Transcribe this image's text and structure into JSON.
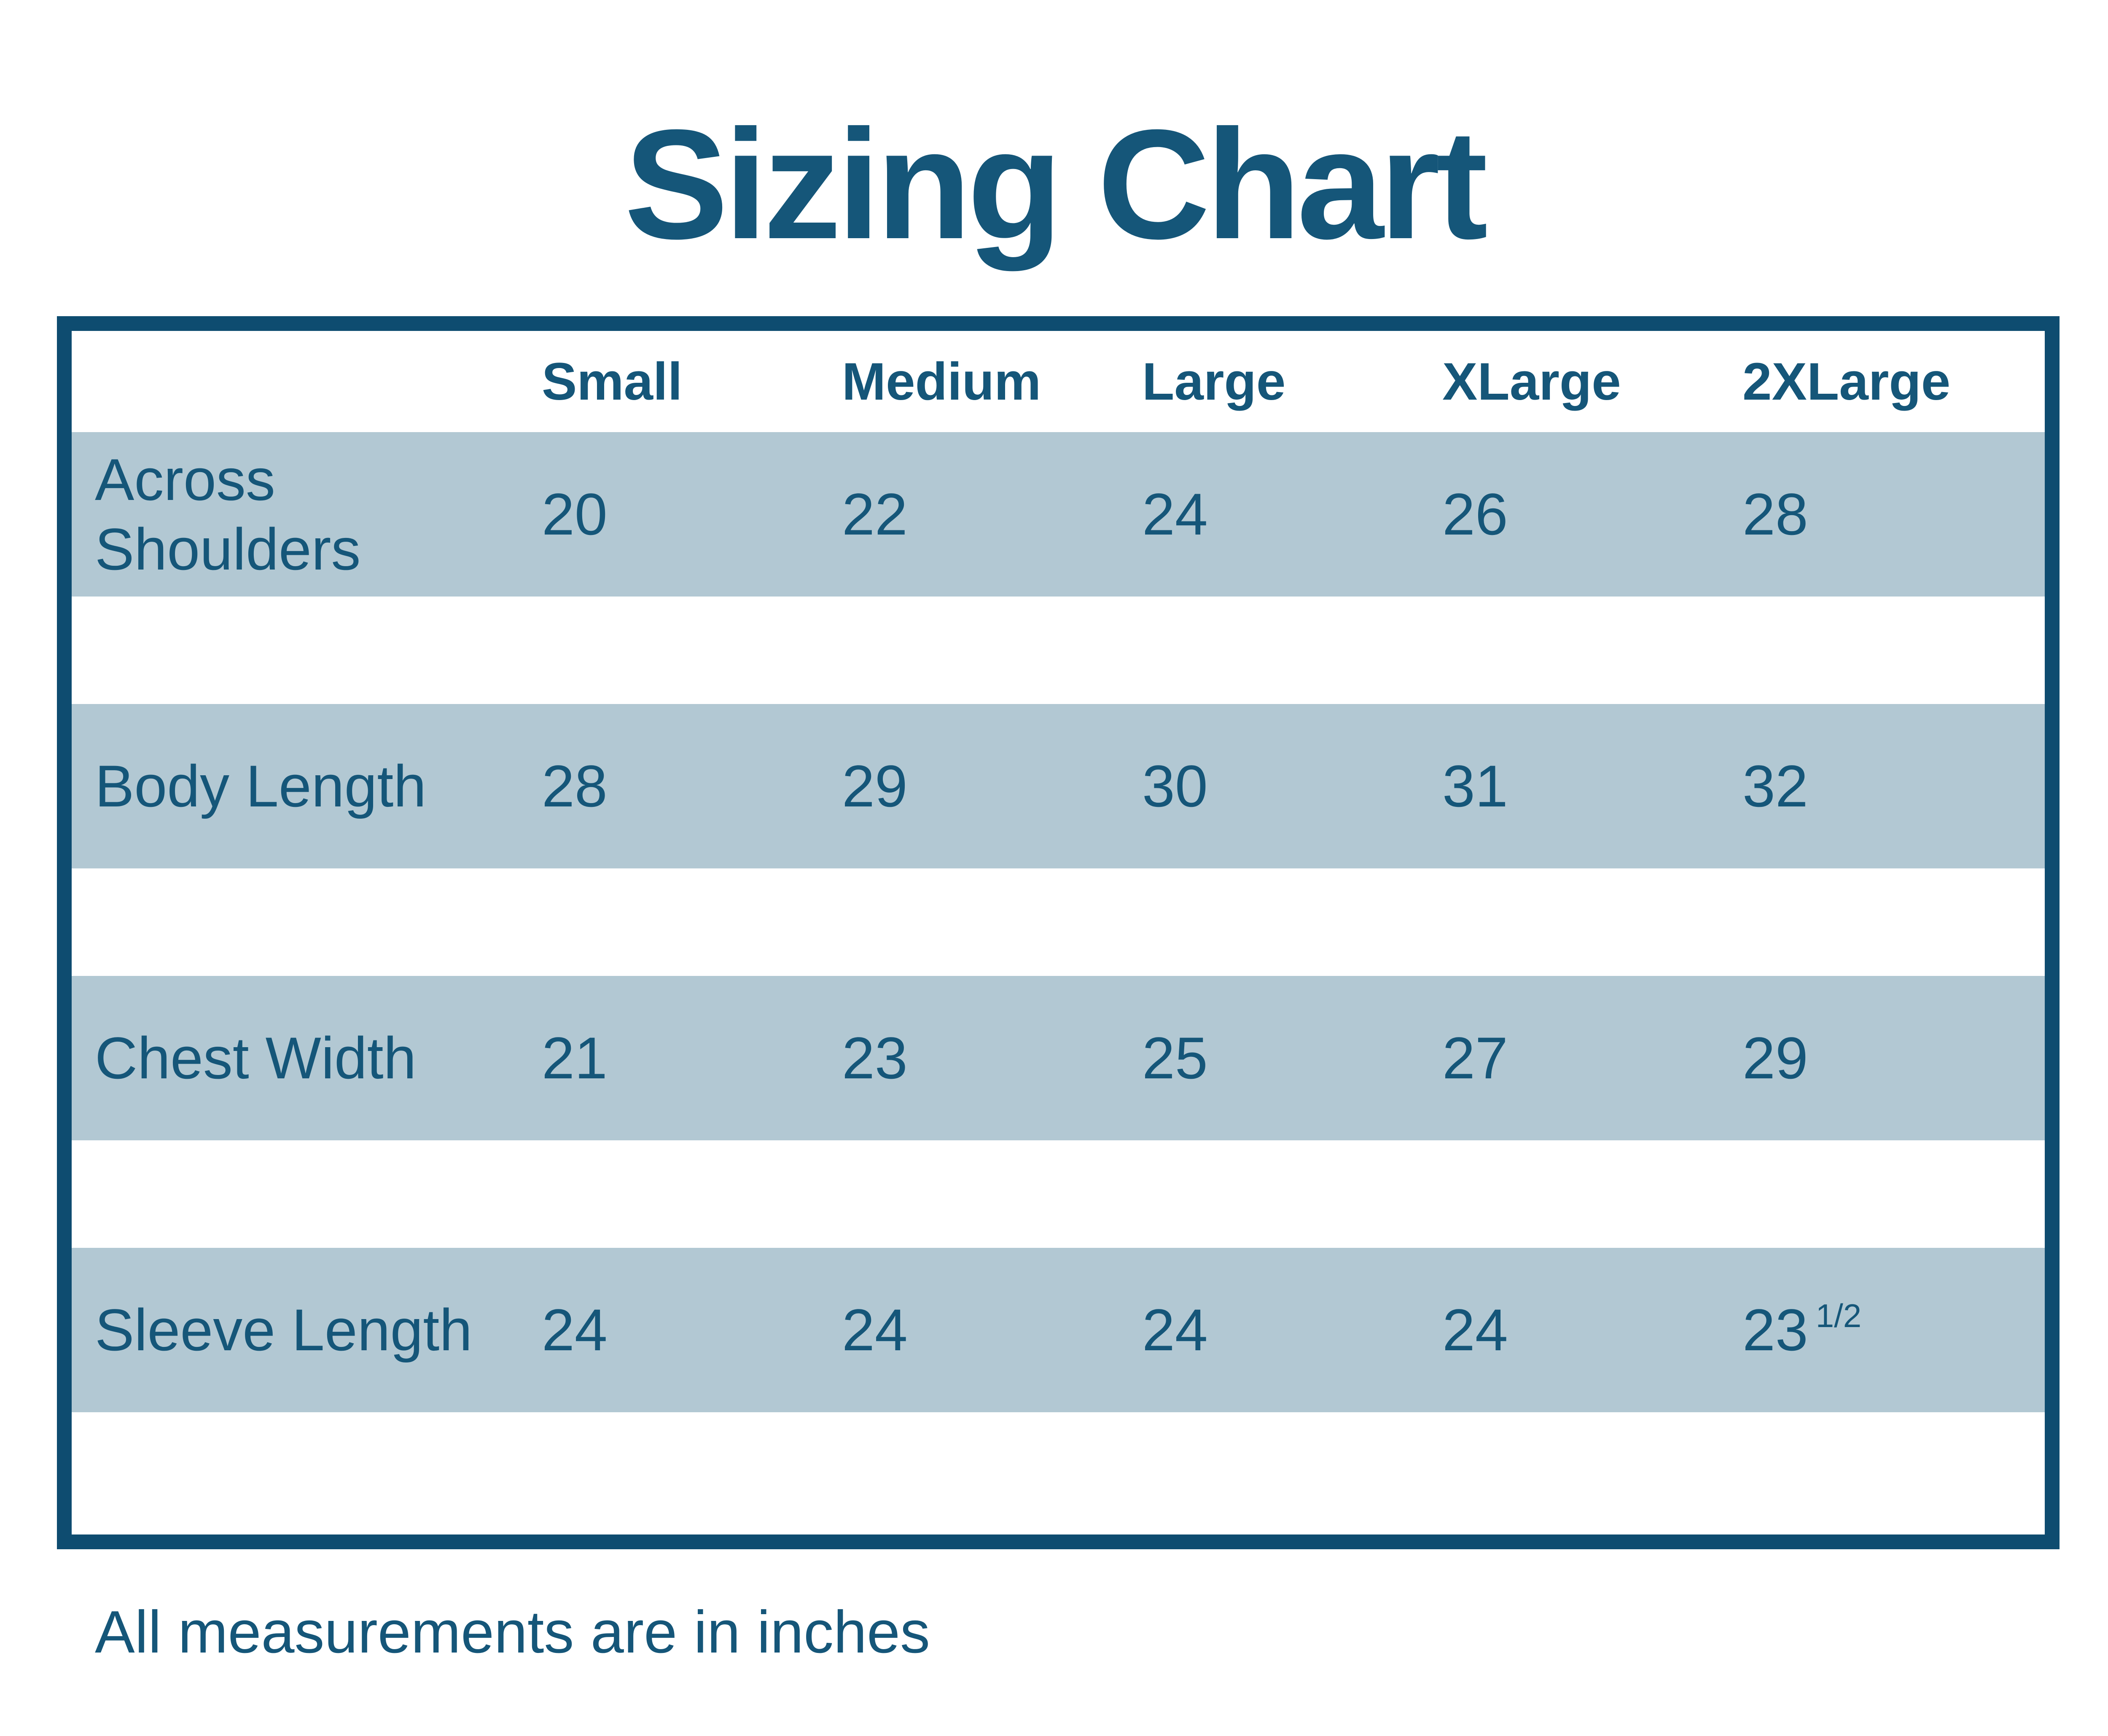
{
  "page": {
    "title": "Sizing Chart",
    "footnote": "All measurements are in inches"
  },
  "table": {
    "columns": [
      "Small",
      "Medium",
      "Large",
      "XLarge",
      "2XLarge"
    ],
    "rows": [
      {
        "label": "Across Shoulders",
        "values": [
          {
            "v": "20",
            "f": ""
          },
          {
            "v": "22",
            "f": ""
          },
          {
            "v": "24",
            "f": ""
          },
          {
            "v": "26",
            "f": ""
          },
          {
            "v": "28",
            "f": ""
          }
        ]
      },
      {
        "label": "Body Length",
        "values": [
          {
            "v": "28",
            "f": ""
          },
          {
            "v": "29",
            "f": ""
          },
          {
            "v": "30",
            "f": ""
          },
          {
            "v": "31",
            "f": ""
          },
          {
            "v": "32",
            "f": ""
          }
        ]
      },
      {
        "label": "Chest Width",
        "values": [
          {
            "v": "21",
            "f": ""
          },
          {
            "v": "23",
            "f": ""
          },
          {
            "v": "25",
            "f": ""
          },
          {
            "v": "27",
            "f": ""
          },
          {
            "v": "29",
            "f": ""
          }
        ]
      },
      {
        "label": "Sleeve Length",
        "values": [
          {
            "v": "24",
            "f": ""
          },
          {
            "v": "24",
            "f": ""
          },
          {
            "v": "24",
            "f": ""
          },
          {
            "v": "24",
            "f": ""
          },
          {
            "v": "23",
            "f": "1/2"
          }
        ]
      }
    ]
  },
  "chart_data": {
    "type": "table",
    "title": "Sizing Chart",
    "columns": [
      "Small",
      "Medium",
      "Large",
      "XLarge",
      "2XLarge"
    ],
    "rows": [
      {
        "label": "Across Shoulders",
        "values": [
          20,
          22,
          24,
          26,
          28
        ]
      },
      {
        "label": "Body Length",
        "values": [
          28,
          29,
          30,
          31,
          32
        ]
      },
      {
        "label": "Chest Width",
        "values": [
          21,
          23,
          25,
          27,
          29
        ]
      },
      {
        "label": "Sleeve Length",
        "values": [
          24,
          24,
          24,
          24,
          23.5
        ]
      }
    ],
    "note": "All measurements are in inches"
  },
  "colors": {
    "frame_border": "#0E4C70",
    "text_blue": "#155679",
    "band_background": "#B2C8D3",
    "page_background": "#FFFFFF"
  }
}
